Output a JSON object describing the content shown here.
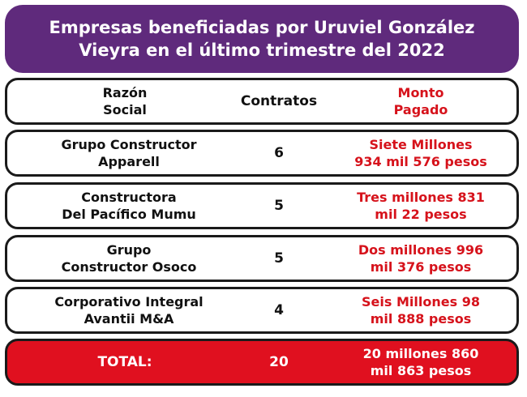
{
  "title": {
    "line1": "Empresas beneficiadas por Uruviel González",
    "line2": "Vieyra en el último trimestre del 2022"
  },
  "header": {
    "company_line1": "Razón",
    "company_line2": "Social",
    "contracts": "Contratos",
    "amount_line1": "Monto",
    "amount_line2": "Pagado"
  },
  "rows": [
    {
      "company_line1": "Grupo Constructor",
      "company_line2": "Apparell",
      "contracts": "6",
      "amount_line1": "Siete Millones",
      "amount_line2": "934 mil 576 pesos"
    },
    {
      "company_line1": "Constructora",
      "company_line2": "Del Pacífico Mumu",
      "contracts": "5",
      "amount_line1": "Tres millones 831",
      "amount_line2": "mil 22 pesos"
    },
    {
      "company_line1": "Grupo",
      "company_line2": "Constructor Osoco",
      "contracts": "5",
      "amount_line1": "Dos millones 996",
      "amount_line2": "mil 376 pesos"
    },
    {
      "company_line1": "Corporativo Integral",
      "company_line2": "Avantii M&A",
      "contracts": "4",
      "amount_line1": "Seis Millones 98",
      "amount_line2": "mil 888 pesos"
    }
  ],
  "total": {
    "label": "TOTAL:",
    "contracts": "20",
    "amount_line1": "20 millones 860",
    "amount_line2": "mil 863 pesos"
  },
  "colors": {
    "title_bg": "#5f2a7c",
    "amount_text": "#d6121b",
    "total_bg": "#e0101f",
    "border": "#1a1a1a"
  }
}
